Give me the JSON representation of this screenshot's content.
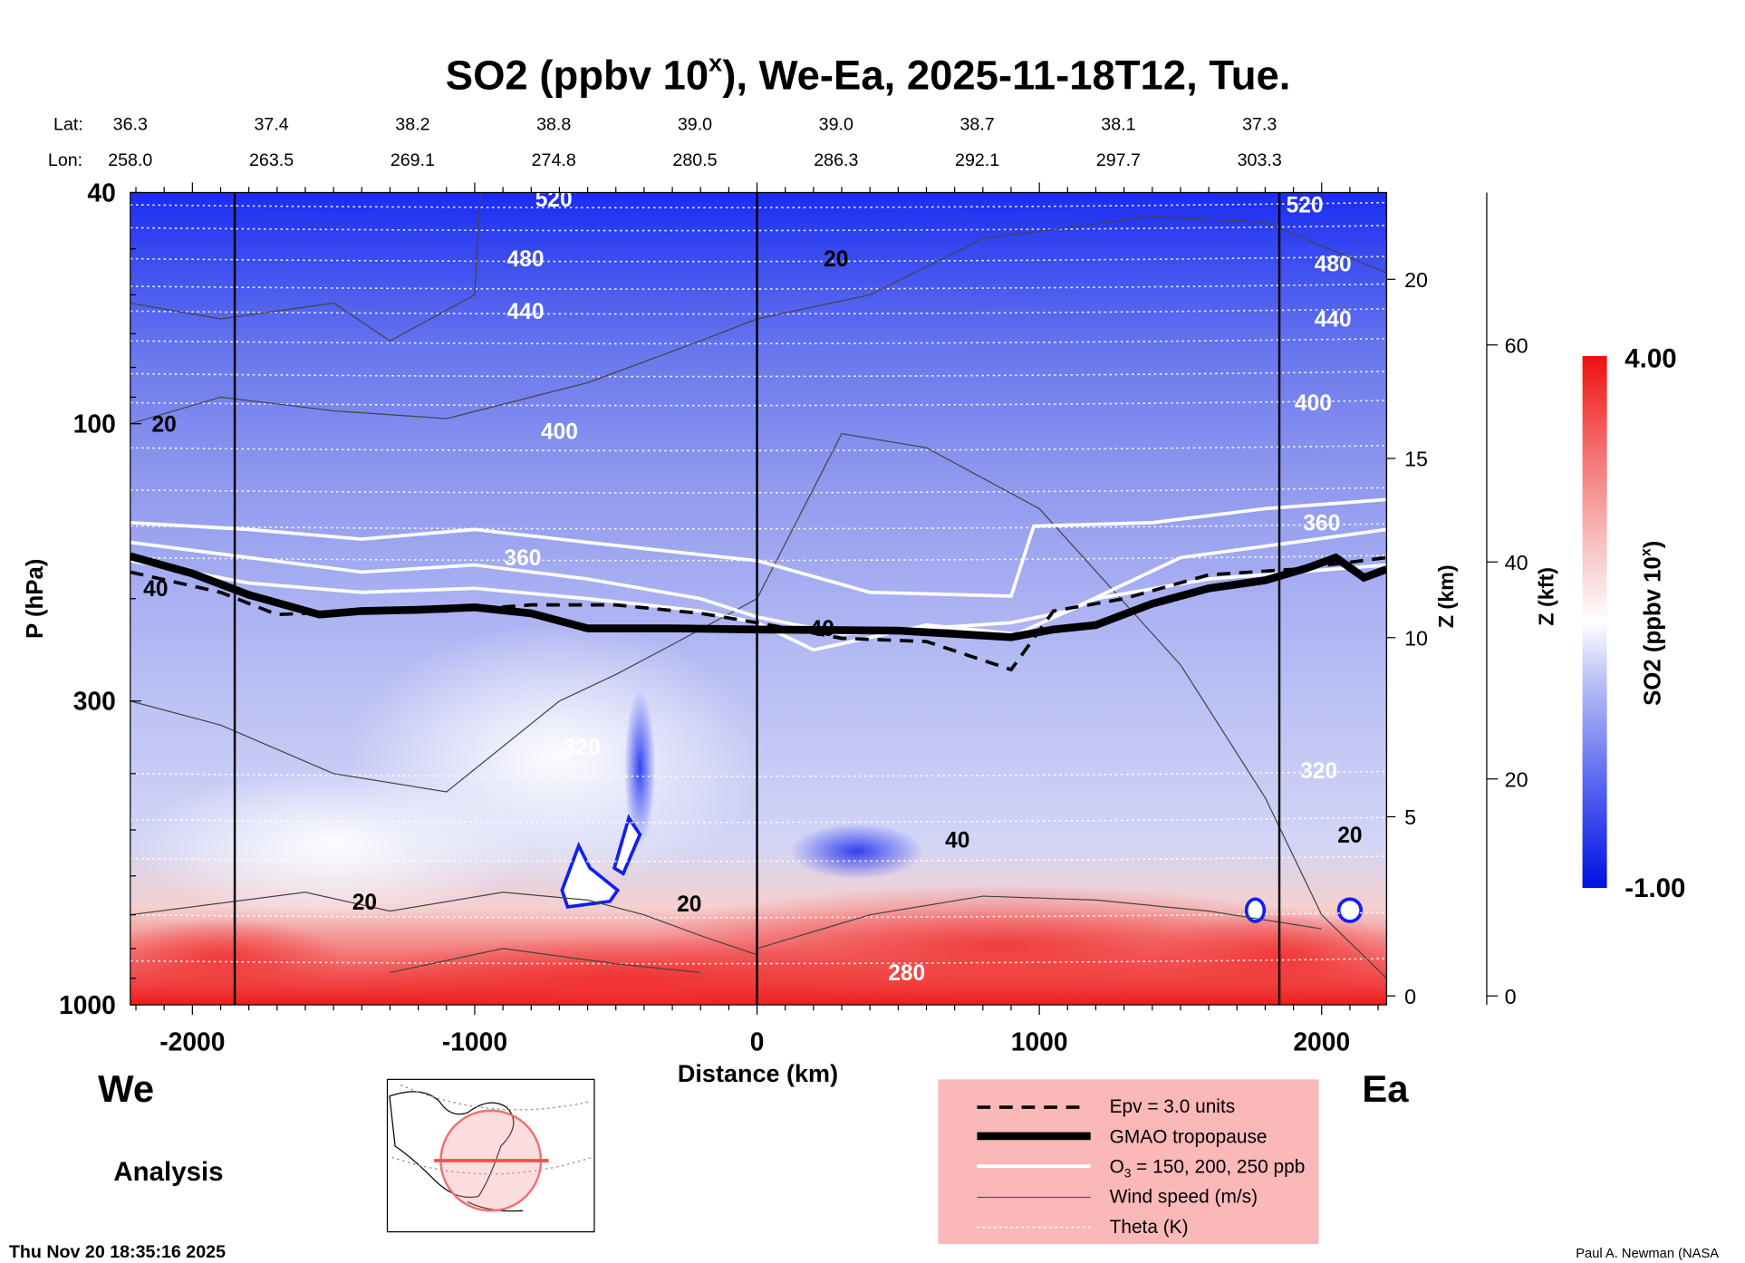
{
  "chart_data": {
    "type": "heatmap",
    "title": "SO2 (ppbv 10",
    "title_sup": "x",
    "title_rest": "), We-Ea, 2025-11-18T12, Tue.",
    "lat_label": "Lat:",
    "lon_label": "Lon:",
    "lat": [
      "36.3",
      "37.4",
      "38.2",
      "38.8",
      "39.0",
      "39.0",
      "38.7",
      "38.1",
      "37.3"
    ],
    "lon": [
      "258.0",
      "263.5",
      "269.1",
      "274.8",
      "280.5",
      "286.3",
      "292.1",
      "297.7",
      "303.3"
    ],
    "latlon_distance": [
      -2220,
      -1720,
      -1220,
      -720,
      -220,
      280,
      780,
      1280,
      1780
    ],
    "xlabel": "Distance (km)",
    "xlim": [
      -2220,
      2230
    ],
    "xticks": [
      -2000,
      -1000,
      0,
      1000,
      2000
    ],
    "xtick_labels": [
      "-2000",
      "-1000",
      "0",
      "1000",
      "2000"
    ],
    "ylabel": "P (hPa)",
    "ylim": [
      1000,
      40
    ],
    "yscale": "log",
    "yticks": [
      40,
      100,
      300,
      1000
    ],
    "ytick_labels": [
      "40",
      "100",
      "300",
      "1000"
    ],
    "z_km_label": "Z (km)",
    "z_km_ticks": [
      0,
      5,
      10,
      15,
      20
    ],
    "z_km_tick_labels": [
      "0",
      "5",
      "10",
      "15",
      "20"
    ],
    "z_kft_label": "Z (kft)",
    "z_kft_ticks": [
      0,
      20,
      40,
      60
    ],
    "z_kft_tick_labels": [
      "0",
      "20",
      "40",
      "60"
    ],
    "colorbar": {
      "label": "SO2 (ppbv 10",
      "label_sup": "x",
      "label_end": ")",
      "min": -1.0,
      "max": 4.0,
      "min_label": "-1.00",
      "max_label": "4.00"
    },
    "section_lines_km": [
      -1850,
      0,
      1850
    ],
    "theta_labels": [
      {
        "text": "520",
        "x": -720,
        "p": 41
      },
      {
        "text": "480",
        "x": -820,
        "p": 52
      },
      {
        "text": "440",
        "x": -820,
        "p": 64
      },
      {
        "text": "400",
        "x": -700,
        "p": 103
      },
      {
        "text": "360",
        "x": -830,
        "p": 170
      },
      {
        "text": "320",
        "x": -620,
        "p": 360
      },
      {
        "text": "280",
        "x": 530,
        "p": 880
      },
      {
        "text": "520",
        "x": 1940,
        "p": 42
      },
      {
        "text": "480",
        "x": 2040,
        "p": 53
      },
      {
        "text": "440",
        "x": 2040,
        "p": 66
      },
      {
        "text": "400",
        "x": 1970,
        "p": 92
      },
      {
        "text": "360",
        "x": 2000,
        "p": 148
      },
      {
        "text": "320",
        "x": 1990,
        "p": 395
      }
    ],
    "theta_levels_p": [
      42,
      46,
      52,
      58,
      64,
      72,
      82,
      92,
      110,
      130,
      150,
      170,
      400,
      480,
      560,
      700,
      840
    ],
    "wind_labels": [
      {
        "text": "20",
        "x": 280,
        "p": 52
      },
      {
        "text": "20",
        "x": -2100,
        "p": 100
      },
      {
        "text": "40",
        "x": -2130,
        "p": 192
      },
      {
        "text": "40",
        "x": 230,
        "p": 225
      },
      {
        "text": "40",
        "x": 710,
        "p": 520
      },
      {
        "text": "20",
        "x": -1390,
        "p": 665
      },
      {
        "text": "20",
        "x": -240,
        "p": 670
      },
      {
        "text": "20",
        "x": 2100,
        "p": 510
      }
    ],
    "tropopause": [
      [
        -2220,
        169
      ],
      [
        -2000,
        181
      ],
      [
        -1800,
        197
      ],
      [
        -1550,
        213
      ],
      [
        -1400,
        210
      ],
      [
        -1200,
        209
      ],
      [
        -1000,
        207
      ],
      [
        -800,
        212
      ],
      [
        -600,
        225
      ],
      [
        -300,
        225
      ],
      [
        0,
        226
      ],
      [
        500,
        227
      ],
      [
        900,
        233
      ],
      [
        1050,
        226
      ],
      [
        1200,
        222
      ],
      [
        1400,
        204
      ],
      [
        1600,
        192
      ],
      [
        1800,
        186
      ],
      [
        1950,
        177
      ],
      [
        2050,
        170
      ],
      [
        2150,
        184
      ],
      [
        2230,
        178
      ]
    ],
    "o3_contours": [
      [
        [
          -2220,
          148
        ],
        [
          -1800,
          152
        ],
        [
          -1400,
          158
        ],
        [
          -1000,
          152
        ],
        [
          -600,
          160
        ],
        [
          -200,
          168
        ],
        [
          0,
          172
        ],
        [
          400,
          195
        ],
        [
          900,
          198
        ],
        [
          980,
          150
        ],
        [
          1400,
          148
        ],
        [
          1800,
          140
        ],
        [
          2230,
          135
        ]
      ],
      [
        [
          -2220,
          160
        ],
        [
          -1800,
          170
        ],
        [
          -1400,
          180
        ],
        [
          -1000,
          175
        ],
        [
          -600,
          185
        ],
        [
          -200,
          200
        ],
        [
          0,
          215
        ],
        [
          300,
          230
        ],
        [
          900,
          220
        ],
        [
          1100,
          210
        ],
        [
          1500,
          170
        ],
        [
          1900,
          160
        ],
        [
          2230,
          152
        ]
      ],
      [
        [
          -2220,
          172
        ],
        [
          -1800,
          188
        ],
        [
          -1400,
          195
        ],
        [
          -1000,
          192
        ],
        [
          -600,
          200
        ],
        [
          -200,
          210
        ],
        [
          0,
          220
        ],
        [
          200,
          245
        ],
        [
          600,
          222
        ],
        [
          920,
          230
        ],
        [
          1200,
          200
        ],
        [
          1600,
          185
        ],
        [
          2230,
          175
        ]
      ]
    ],
    "epv_contour": [
      [
        -2220,
        180
      ],
      [
        -1900,
        195
      ],
      [
        -1700,
        213
      ],
      [
        -1400,
        210
      ],
      [
        -1100,
        210
      ],
      [
        -800,
        205
      ],
      [
        -500,
        205
      ],
      [
        -200,
        212
      ],
      [
        0,
        220
      ],
      [
        300,
        234
      ],
      [
        600,
        237
      ],
      [
        900,
        265
      ],
      [
        1050,
        210
      ],
      [
        1300,
        200
      ],
      [
        1600,
        182
      ],
      [
        1900,
        178
      ],
      [
        2230,
        170
      ]
    ],
    "legend": {
      "epv": "Epv = 3.0 units",
      "tropopause": "GMAO tropopause",
      "o3_prefix": "O",
      "o3_sub": "3",
      "o3_rest": " = 150, 200, 250 ppb",
      "wind": "Wind speed (m/s)",
      "theta": "Theta (K)",
      "placement": "bottom-center"
    }
  },
  "labels": {
    "west": "We",
    "east": "Ea",
    "analysis": "Analysis",
    "timestamp": "Thu Nov 20 18:35:16 2025",
    "credit": "Paul A. Newman (NASA"
  },
  "colors": {
    "blue": "#0010f0",
    "red": "#f01010",
    "legend_bg": "#fbb8b8"
  }
}
